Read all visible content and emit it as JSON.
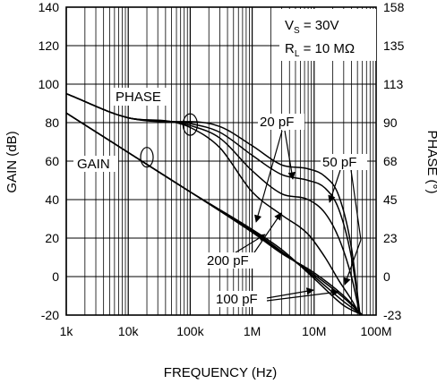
{
  "chart_data": {
    "type": "line",
    "title": "",
    "xlabel": "FREQUENCY (Hz)",
    "ylabel": "GAIN (dB)",
    "y2label": "PHASE (°)",
    "x_scale": "log",
    "xlim": [
      1000,
      100000000
    ],
    "ylim": [
      -20,
      140
    ],
    "y2lim": [
      -23,
      158
    ],
    "grid": true,
    "x_ticks": [
      "1k",
      "10k",
      "100k",
      "1M",
      "10M",
      "100M"
    ],
    "y_ticks": [
      "-20",
      "0",
      "20",
      "40",
      "60",
      "80",
      "100",
      "120",
      "140"
    ],
    "y2_ticks": [
      "-23",
      "0",
      "23",
      "45",
      "68",
      "90",
      "113",
      "135",
      "158"
    ],
    "conditions": {
      "vs": "V",
      "vs_sub": "S",
      "vs_val": " = 30V",
      "rl": "R",
      "rl_sub": "L",
      "rl_val": " = 10 MΩ"
    },
    "labels": {
      "phase": "PHASE",
      "gain": "GAIN",
      "c20": "20 pF",
      "c50": "50 pF",
      "c100": "100 pF",
      "c200": "200 pF"
    },
    "series": [
      {
        "group": "gain",
        "cap": "20 pF",
        "x": [
          1000,
          10000,
          100000,
          1000000,
          3000000,
          10000000,
          30000000,
          60000000
        ],
        "y": [
          85,
          64.5,
          44,
          23,
          12,
          2,
          -10,
          -20
        ]
      },
      {
        "group": "gain",
        "cap": "50 pF",
        "x": [
          1000,
          10000,
          100000,
          1000000,
          3000000,
          10000000,
          30000000,
          60000000
        ],
        "y": [
          85,
          64.5,
          44,
          23.5,
          12.5,
          1,
          -11,
          -20
        ]
      },
      {
        "group": "gain",
        "cap": "100 pF",
        "x": [
          1000,
          10000,
          100000,
          1000000,
          3000000,
          10000000,
          30000000,
          60000000
        ],
        "y": [
          85,
          64.5,
          44,
          24,
          13,
          0,
          -13,
          -20
        ]
      },
      {
        "group": "gain",
        "cap": "200 pF",
        "x": [
          1000,
          10000,
          100000,
          1000000,
          3000000,
          10000000,
          30000000,
          60000000
        ],
        "y": [
          85,
          64.5,
          44,
          24.5,
          14,
          -1,
          -15,
          -20
        ]
      },
      {
        "group": "phase",
        "cap": "20 pF",
        "x": [
          1000,
          10000,
          50000,
          100000,
          300000,
          1000000,
          3000000,
          8000000,
          15000000,
          25000000,
          40000000,
          55000000
        ],
        "y": [
          95,
          82.5,
          80.5,
          80.5,
          78,
          68,
          58,
          56,
          52,
          42,
          15,
          -20
        ]
      },
      {
        "group": "phase",
        "cap": "50 pF",
        "x": [
          1000,
          10000,
          50000,
          100000,
          300000,
          1000000,
          3000000,
          8000000,
          15000000,
          25000000,
          40000000,
          55000000
        ],
        "y": [
          95,
          82.5,
          80.5,
          79.5,
          75,
          63,
          53,
          50,
          46,
          35,
          10,
          -20
        ]
      },
      {
        "group": "phase",
        "cap": "100 pF",
        "x": [
          1000,
          10000,
          50000,
          100000,
          300000,
          1000000,
          3000000,
          8000000,
          15000000,
          25000000,
          40000000,
          55000000
        ],
        "y": [
          95,
          82.5,
          80.5,
          78.5,
          72,
          55,
          43,
          40,
          33,
          20,
          0,
          -20
        ]
      },
      {
        "group": "phase",
        "cap": "200 pF",
        "x": [
          1000,
          10000,
          50000,
          100000,
          300000,
          1000000,
          3000000,
          8000000,
          15000000,
          25000000,
          40000000,
          55000000
        ],
        "y": [
          95,
          82.5,
          80.5,
          77.5,
          67,
          44,
          32,
          22,
          10,
          -2,
          -12,
          -20
        ]
      }
    ]
  }
}
